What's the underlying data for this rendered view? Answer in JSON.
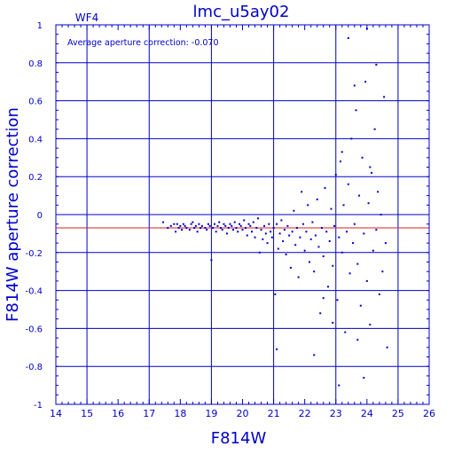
{
  "chart_data": {
    "type": "scatter",
    "title": "lmc_u5ay02",
    "chip_label": "WF4",
    "annotation": "Average aperture correction: -0.070",
    "xlabel": "F814W",
    "ylabel": "F814W aperture correction",
    "xlim": [
      14,
      26
    ],
    "ylim": [
      -1,
      1
    ],
    "xticks": [
      14,
      15,
      16,
      17,
      18,
      19,
      20,
      21,
      22,
      23,
      24,
      25,
      26
    ],
    "yticks": [
      -1,
      -0.8,
      -0.6,
      -0.4,
      -0.2,
      0,
      0.2,
      0.4,
      0.6,
      0.8,
      1
    ],
    "ytick_labels": [
      "-1",
      "-0.8",
      "-0.6",
      "-0.4",
      "-0.2",
      "0",
      "0.2",
      "0.4",
      "0.6",
      "0.8",
      "1"
    ],
    "grid": true,
    "reference_line": {
      "y": -0.07
    },
    "colors": {
      "axis": "#0000cc",
      "points": "#0000cc",
      "reference_line": "#dd2222"
    },
    "series": [
      {
        "values_note_free": true,
        "points": [
          [
            17.45,
            -0.04
          ],
          [
            17.6,
            -0.07
          ],
          [
            17.7,
            -0.06
          ],
          [
            17.8,
            -0.05
          ],
          [
            17.85,
            -0.09
          ],
          [
            17.9,
            -0.05
          ],
          [
            17.95,
            -0.07
          ],
          [
            18.0,
            -0.06
          ],
          [
            18.05,
            -0.08
          ],
          [
            18.1,
            -0.05
          ],
          [
            18.15,
            -0.06
          ],
          [
            18.2,
            -0.07
          ],
          [
            18.3,
            -0.08
          ],
          [
            18.35,
            -0.05
          ],
          [
            18.4,
            -0.04
          ],
          [
            18.45,
            -0.07
          ],
          [
            18.5,
            -0.06
          ],
          [
            18.55,
            -0.09
          ],
          [
            18.6,
            -0.05
          ],
          [
            18.65,
            -0.07
          ],
          [
            18.7,
            -0.06
          ],
          [
            18.8,
            -0.07
          ],
          [
            18.85,
            -0.08
          ],
          [
            18.9,
            -0.05
          ],
          [
            18.95,
            -0.06
          ],
          [
            19.0,
            -0.24
          ],
          [
            19.05,
            -0.07
          ],
          [
            19.1,
            -0.05
          ],
          [
            19.15,
            -0.09
          ],
          [
            19.2,
            -0.06
          ],
          [
            19.25,
            -0.04
          ],
          [
            19.3,
            -0.07
          ],
          [
            19.35,
            -0.08
          ],
          [
            19.4,
            -0.05
          ],
          [
            19.45,
            -0.06
          ],
          [
            19.5,
            -0.1
          ],
          [
            19.55,
            -0.07
          ],
          [
            19.6,
            -0.05
          ],
          [
            19.65,
            -0.06
          ],
          [
            19.7,
            -0.08
          ],
          [
            19.75,
            -0.04
          ],
          [
            19.8,
            -0.07
          ],
          [
            19.85,
            -0.09
          ],
          [
            19.9,
            -0.05
          ],
          [
            19.95,
            -0.06
          ],
          [
            20.0,
            -0.08
          ],
          [
            20.05,
            -0.03
          ],
          [
            20.1,
            -0.07
          ],
          [
            20.15,
            -0.11
          ],
          [
            20.2,
            -0.05
          ],
          [
            20.25,
            -0.06
          ],
          [
            20.3,
            -0.09
          ],
          [
            20.35,
            -0.04
          ],
          [
            20.4,
            -0.12
          ],
          [
            20.45,
            -0.07
          ],
          [
            20.5,
            -0.02
          ],
          [
            20.55,
            -0.2
          ],
          [
            20.6,
            -0.08
          ],
          [
            20.65,
            -0.13
          ],
          [
            20.7,
            -0.06
          ],
          [
            20.75,
            -0.1
          ],
          [
            20.8,
            -0.15
          ],
          [
            20.85,
            -0.05
          ],
          [
            20.9,
            -0.09
          ],
          [
            20.95,
            -0.12
          ],
          [
            21.0,
            -0.07
          ],
          [
            21.05,
            -0.42
          ],
          [
            21.1,
            -0.05
          ],
          [
            21.15,
            -0.18
          ],
          [
            21.2,
            -0.1
          ],
          [
            21.25,
            -0.03
          ],
          [
            21.3,
            -0.14
          ],
          [
            21.35,
            -0.08
          ],
          [
            21.4,
            -0.21
          ],
          [
            21.45,
            -0.06
          ],
          [
            21.5,
            -0.11
          ],
          [
            21.55,
            -0.28
          ],
          [
            21.6,
            -0.09
          ],
          [
            21.65,
            0.02
          ],
          [
            21.7,
            -0.16
          ],
          [
            21.75,
            -0.07
          ],
          [
            21.8,
            -0.33
          ],
          [
            21.85,
            -0.12
          ],
          [
            21.9,
            0.12
          ],
          [
            21.95,
            -0.05
          ],
          [
            22.0,
            -0.19
          ],
          [
            22.05,
            -0.09
          ],
          [
            22.1,
            0.05
          ],
          [
            22.15,
            -0.25
          ],
          [
            22.2,
            -0.13
          ],
          [
            22.25,
            -0.04
          ],
          [
            22.3,
            -0.3
          ],
          [
            22.35,
            -0.11
          ],
          [
            22.4,
            0.08
          ],
          [
            22.45,
            -0.17
          ],
          [
            22.5,
            -0.52
          ],
          [
            22.55,
            -0.07
          ],
          [
            22.6,
            -0.22
          ],
          [
            22.65,
            0.14
          ],
          [
            22.7,
            -0.09
          ],
          [
            22.75,
            -0.38
          ],
          [
            22.8,
            -0.14
          ],
          [
            22.85,
            0.03
          ],
          [
            22.9,
            -0.27
          ],
          [
            22.95,
            -0.06
          ],
          [
            23.0,
            0.21
          ],
          [
            23.05,
            -0.45
          ],
          [
            23.1,
            -0.12
          ],
          [
            23.15,
            0.28
          ],
          [
            23.2,
            -0.2
          ],
          [
            23.25,
            0.05
          ],
          [
            23.3,
            -0.62
          ],
          [
            23.35,
            -0.09
          ],
          [
            23.4,
            0.16
          ],
          [
            23.45,
            -0.31
          ],
          [
            23.5,
            0.4
          ],
          [
            23.55,
            -0.15
          ],
          [
            23.6,
            -0.05
          ],
          [
            23.65,
            0.55
          ],
          [
            23.7,
            -0.26
          ],
          [
            23.75,
            0.1
          ],
          [
            23.8,
            -0.48
          ],
          [
            23.85,
            0.3
          ],
          [
            23.9,
            -0.1
          ],
          [
            23.95,
            0.7
          ],
          [
            24.0,
            -0.35
          ],
          [
            24.05,
            0.06
          ],
          [
            24.1,
            -0.58
          ],
          [
            24.15,
            0.22
          ],
          [
            24.2,
            -0.19
          ],
          [
            24.25,
            0.45
          ],
          [
            24.3,
            -0.08
          ],
          [
            24.35,
            0.12
          ],
          [
            24.4,
            -0.42
          ],
          [
            24.45,
            0.0
          ],
          [
            24.5,
            -0.3
          ],
          [
            24.55,
            0.62
          ],
          [
            24.6,
            -0.15
          ],
          [
            24.65,
            -0.7
          ],
          [
            23.1,
            -0.9
          ],
          [
            23.4,
            0.93
          ],
          [
            24.0,
            0.98
          ],
          [
            22.3,
            -0.74
          ],
          [
            21.1,
            -0.71
          ],
          [
            23.9,
            -0.86
          ],
          [
            24.3,
            0.79
          ],
          [
            23.6,
            0.68
          ],
          [
            22.9,
            -0.57
          ],
          [
            23.2,
            0.33
          ],
          [
            24.1,
            0.25
          ],
          [
            22.6,
            -0.44
          ],
          [
            23.7,
            -0.66
          ]
        ]
      }
    ]
  }
}
